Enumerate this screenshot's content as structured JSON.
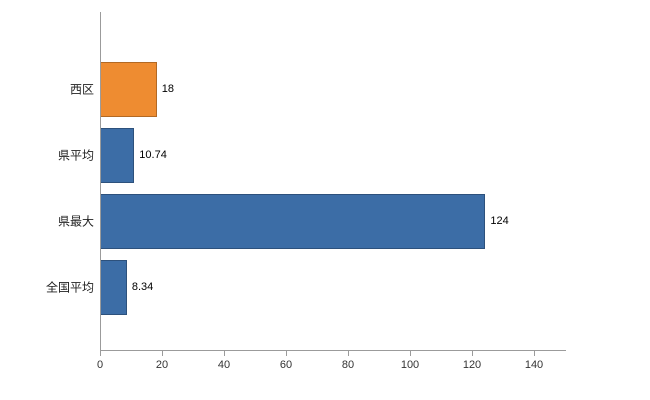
{
  "chart_data": {
    "type": "bar",
    "orientation": "horizontal",
    "title": "",
    "xlabel": "",
    "ylabel": "",
    "categories": [
      "西区",
      "県平均",
      "県最大",
      "全国平均"
    ],
    "values": [
      18,
      10.74,
      124,
      8.34
    ],
    "value_labels": [
      "18",
      "10.74",
      "124",
      "8.34"
    ],
    "bar_colors": [
      "#ee8c31",
      "#3c6da6",
      "#3c6da6",
      "#3c6da6"
    ],
    "xlim": [
      0,
      150
    ],
    "x_ticks": [
      0,
      20,
      40,
      60,
      80,
      100,
      120,
      140
    ],
    "grid": false,
    "legend": false,
    "axis_color": "#9b9b9b"
  }
}
